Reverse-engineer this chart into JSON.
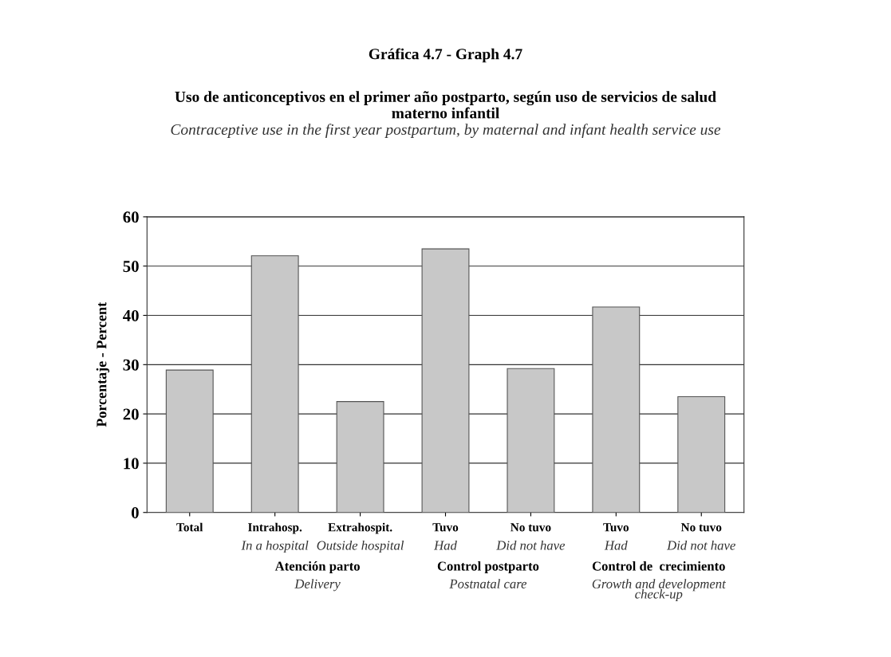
{
  "chart_data": {
    "type": "bar",
    "title": "Gráfica 4.7 - Graph 4.7\nUso de anticonceptivos en el primer año postparto, según uso de servicios de salud\nmaterno infantil",
    "subtitle": "Contraceptive use in the first year postpartum, by maternal and infant health service use",
    "ylabel": "Porcentaje - Percent",
    "categories": [
      "Total",
      "Intrahosp.\nIn a hospital",
      "Extrahospit.\nOutside hospital",
      "Tuvo\nHad",
      "No tuvo\nDid not have",
      "Tuvo\nHad",
      "No tuvo\nDid not have"
    ],
    "values": [
      28.9,
      52.1,
      22.5,
      53.5,
      29.2,
      41.7,
      23.5
    ],
    "color": "#c8c8c8",
    "ylim": [
      0,
      60
    ],
    "yticks": [
      0,
      10,
      20,
      30,
      40,
      50,
      60
    ],
    "grid": "y",
    "annotations": [
      "Atención parto\nDelivery",
      "Control postparto\nPostnatal care",
      "Control de  crecimiento\nGrowth and development\ncheck-up"
    ]
  }
}
